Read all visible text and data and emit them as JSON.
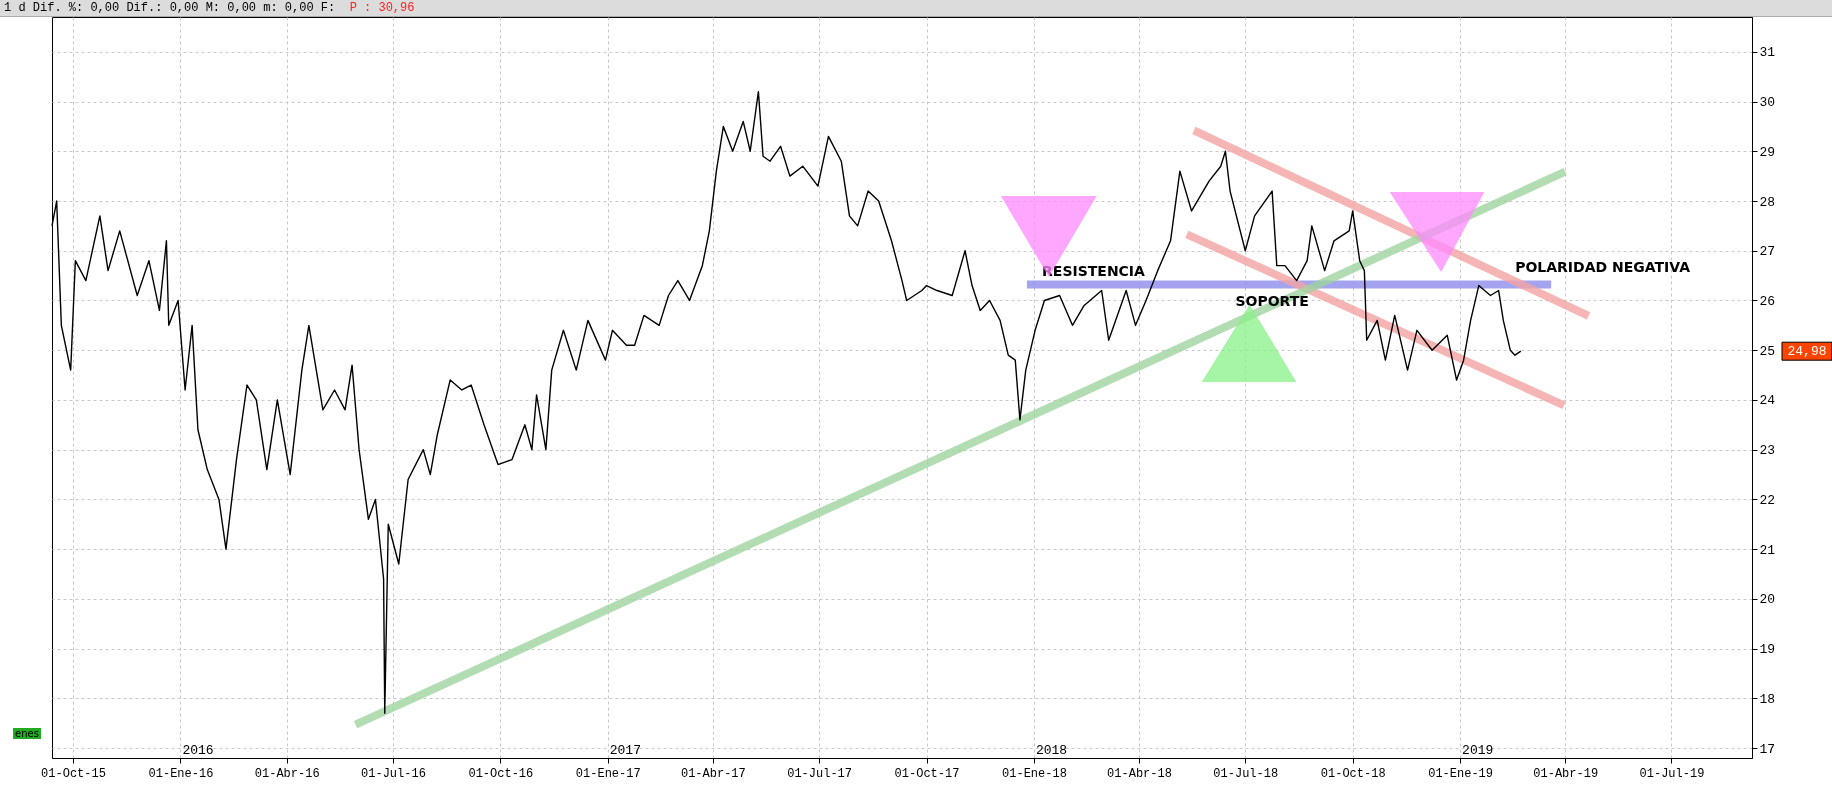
{
  "chart_data": {
    "type": "line",
    "x": [
      "2015-09-13",
      "2015-09-17",
      "2015-09-21",
      "2015-09-29",
      "2015-10-03",
      "2015-10-12",
      "2015-10-24",
      "2015-10-31",
      "2015-11-10",
      "2015-11-25",
      "2015-12-05",
      "2015-12-14",
      "2015-12-20",
      "2015-12-22",
      "2015-12-30",
      "2016-01-05",
      "2016-01-11",
      "2016-01-16",
      "2016-01-24",
      "2016-02-03",
      "2016-02-09",
      "2016-02-18",
      "2016-02-27",
      "2016-03-06",
      "2016-03-15",
      "2016-03-24",
      "2016-04-04",
      "2016-04-14",
      "2016-04-20",
      "2016-05-02",
      "2016-05-12",
      "2016-05-21",
      "2016-05-27",
      "2016-06-02",
      "2016-06-10",
      "2016-06-16",
      "2016-06-23",
      "2016-06-24",
      "2016-06-27",
      "2016-07-06",
      "2016-07-14",
      "2016-07-27",
      "2016-08-02",
      "2016-08-08",
      "2016-08-19",
      "2016-08-29",
      "2016-09-06",
      "2016-09-17",
      "2016-09-29",
      "2016-10-11",
      "2016-10-22",
      "2016-10-28",
      "2016-11-01",
      "2016-11-09",
      "2016-11-14",
      "2016-11-24",
      "2016-12-05",
      "2016-12-15",
      "2016-12-30",
      "2017-01-05",
      "2017-01-17",
      "2017-01-24",
      "2017-02-01",
      "2017-02-14",
      "2017-02-22",
      "2017-03-02",
      "2017-03-12",
      "2017-03-23",
      "2017-03-29",
      "2017-04-04",
      "2017-04-10",
      "2017-04-18",
      "2017-04-27",
      "2017-05-03",
      "2017-05-10",
      "2017-05-14",
      "2017-05-20",
      "2017-05-29",
      "2017-06-06",
      "2017-06-17",
      "2017-06-30",
      "2017-07-09",
      "2017-07-20",
      "2017-07-27",
      "2017-08-03",
      "2017-08-12",
      "2017-08-21",
      "2017-09-01",
      "2017-09-10",
      "2017-09-14",
      "2017-09-27",
      "2017-10-01",
      "2017-10-10",
      "2017-10-23",
      "2017-11-03",
      "2017-11-09",
      "2017-11-16",
      "2017-11-24",
      "2017-12-03",
      "2017-12-10",
      "2017-12-16",
      "2017-12-20",
      "2017-12-25",
      "2018-01-02",
      "2018-01-10",
      "2018-01-23",
      "2018-02-03",
      "2018-02-13",
      "2018-02-28",
      "2018-03-06",
      "2018-03-21",
      "2018-03-29",
      "2018-04-07",
      "2018-04-17",
      "2018-04-28",
      "2018-05-06",
      "2018-05-16",
      "2018-05-31",
      "2018-06-10",
      "2018-06-14",
      "2018-06-18",
      "2018-07-01",
      "2018-07-09",
      "2018-07-24",
      "2018-07-28",
      "2018-08-04",
      "2018-08-14",
      "2018-08-23",
      "2018-08-27",
      "2018-09-07",
      "2018-09-15",
      "2018-09-28",
      "2018-10-01",
      "2018-10-07",
      "2018-10-11",
      "2018-10-13",
      "2018-10-22",
      "2018-10-29",
      "2018-11-06",
      "2018-11-17",
      "2018-11-25",
      "2018-12-08",
      "2018-12-21",
      "2018-12-29",
      "2019-01-04",
      "2019-01-10",
      "2019-01-17",
      "2019-01-27",
      "2019-02-03",
      "2019-02-07",
      "2019-02-13",
      "2019-02-17",
      "2019-02-22"
    ],
    "series": [
      {
        "color": "#000000",
        "values": [
          27.5,
          28.0,
          25.5,
          24.6,
          26.8,
          26.4,
          27.7,
          26.6,
          27.4,
          26.1,
          26.8,
          25.8,
          27.2,
          25.5,
          26.0,
          24.2,
          25.5,
          23.4,
          22.6,
          22.0,
          21.0,
          22.8,
          24.3,
          24.0,
          22.6,
          24.0,
          22.5,
          24.6,
          25.5,
          23.8,
          24.2,
          23.8,
          24.7,
          23.0,
          21.6,
          22.0,
          20.4,
          17.7,
          21.5,
          20.7,
          22.4,
          23.0,
          22.5,
          23.3,
          24.4,
          24.2,
          24.3,
          23.5,
          22.7,
          22.8,
          23.5,
          23.0,
          24.1,
          23.0,
          24.6,
          25.4,
          24.6,
          25.6,
          24.8,
          25.4,
          25.1,
          25.1,
          25.7,
          25.5,
          26.1,
          26.4,
          26.0,
          26.7,
          27.4,
          28.6,
          29.5,
          29.0,
          29.6,
          29.0,
          30.2,
          28.9,
          28.8,
          29.1,
          28.5,
          28.7,
          28.3,
          29.3,
          28.8,
          27.7,
          27.5,
          28.2,
          28.0,
          27.2,
          26.4,
          26.0,
          26.2,
          26.3,
          26.2,
          26.1,
          27.0,
          26.3,
          25.8,
          26.0,
          25.6,
          24.9,
          24.8,
          23.6,
          24.6,
          25.4,
          26.0,
          26.1,
          25.5,
          25.9,
          26.2,
          25.2,
          26.2,
          25.5,
          26.0,
          26.6,
          27.2,
          28.6,
          27.8,
          28.4,
          28.7,
          29.0,
          28.2,
          27.0,
          27.7,
          28.2,
          26.7,
          26.7,
          26.4,
          26.8,
          27.5,
          26.6,
          27.2,
          27.4,
          27.8,
          26.8,
          26.6,
          25.2,
          25.6,
          24.8,
          25.7,
          24.6,
          25.4,
          25.0,
          25.3,
          24.4,
          24.8,
          25.6,
          26.3,
          26.1,
          26.2,
          25.6,
          25.0,
          24.9,
          24.98
        ]
      },
      {
        "type": "line",
        "color": "#9fd39f",
        "x": [
          "2016-05-30",
          "2019-04-01"
        ],
        "values": [
          17.47,
          28.59
        ]
      },
      {
        "type": "line",
        "color": "#f4a3a3",
        "x": [
          "2018-05-18",
          "2019-04-21"
        ],
        "values": [
          29.42,
          25.69
        ]
      },
      {
        "type": "line",
        "color": "#f4a3a3",
        "x": [
          "2018-05-12",
          "2019-03-31"
        ],
        "values": [
          27.33,
          23.89
        ]
      },
      {
        "type": "line",
        "color": "#8c8cec",
        "x": [
          "2017-12-26",
          "2019-03-20"
        ],
        "values": [
          26.32,
          26.32
        ]
      }
    ],
    "xlim": [
      "2015-09-13",
      "2019-09-08"
    ],
    "xticks": [
      {
        "value": "2015-10-01",
        "label": "01-Oct-15"
      },
      {
        "value": "2016-01-01",
        "label": "01-Ene-16"
      },
      {
        "value": "2016-04-01",
        "label": "01-Abr-16"
      },
      {
        "value": "2016-07-01",
        "label": "01-Jul-16"
      },
      {
        "value": "2016-10-01",
        "label": "01-Oct-16"
      },
      {
        "value": "2017-01-01",
        "label": "01-Ene-17"
      },
      {
        "value": "2017-04-01",
        "label": "01-Abr-17"
      },
      {
        "value": "2017-07-01",
        "label": "01-Jul-17"
      },
      {
        "value": "2017-10-01",
        "label": "01-Oct-17"
      },
      {
        "value": "2018-01-01",
        "label": "01-Ene-18"
      },
      {
        "value": "2018-04-01",
        "label": "01-Abr-18"
      },
      {
        "value": "2018-07-01",
        "label": "01-Jul-18"
      },
      {
        "value": "2018-10-01",
        "label": "01-Oct-18"
      },
      {
        "value": "2019-01-01",
        "label": "01-Ene-19"
      },
      {
        "value": "2019-04-01",
        "label": "01-Abr-19"
      },
      {
        "value": "2019-07-01",
        "label": "01-Jul-19"
      }
    ],
    "ylim": [
      16.8,
      31.7
    ],
    "yticks": [
      17,
      18,
      19,
      20,
      21,
      22,
      23,
      24,
      25,
      26,
      27,
      28,
      29,
      30,
      31
    ],
    "grid": true,
    "annotations": [
      "1 d Dif. %: 0,00 Dif.: 0,00 M: 0,00 m: 0,00 F:",
      "P : 30,96",
      "enes",
      "RESISTENCIA",
      "SOPORTE",
      "POLARIDAD NEGATIVA",
      "24,98",
      "2016",
      "2017",
      "2018",
      "2019"
    ]
  }
}
